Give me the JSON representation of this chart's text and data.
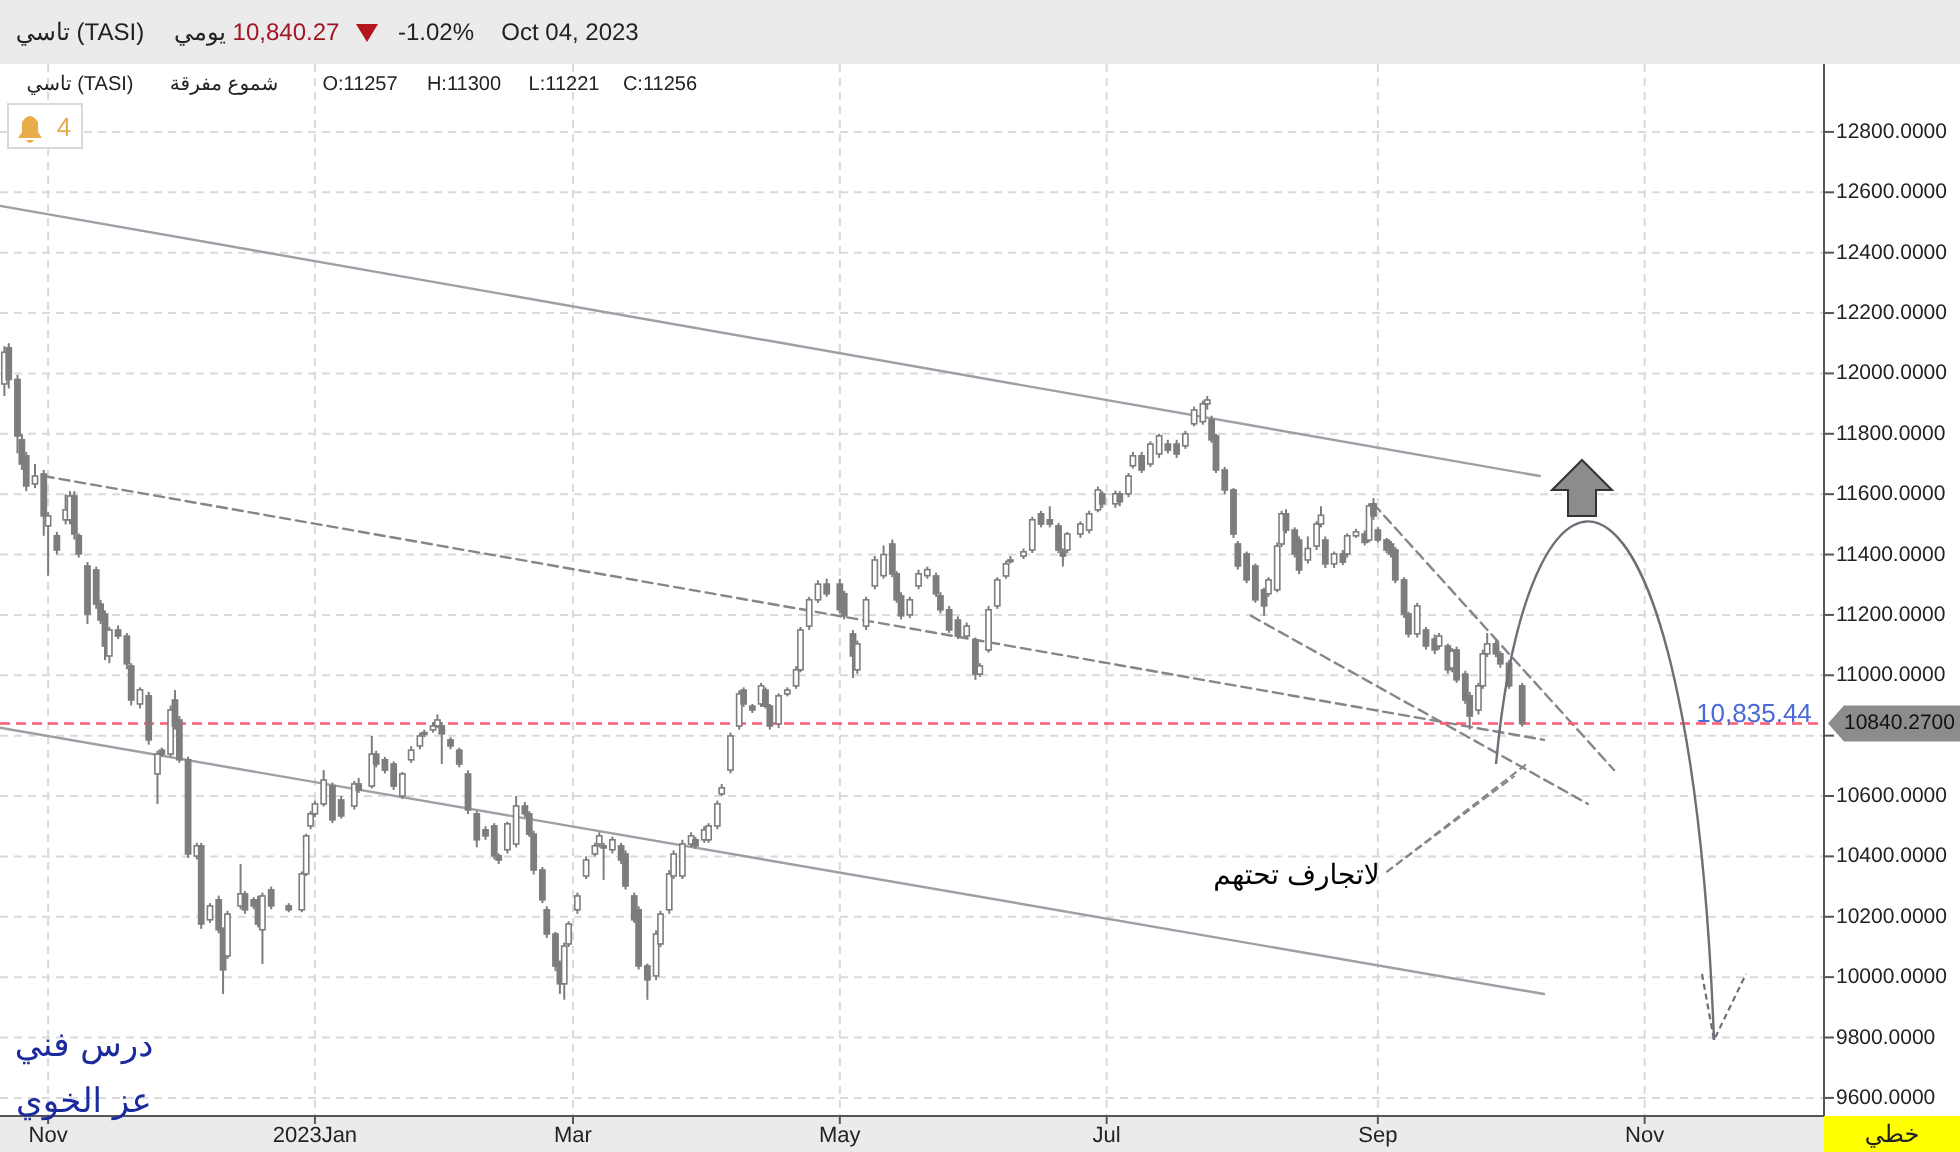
{
  "chart_data": {
    "type": "candlestick",
    "title": "تاسي (TASI)",
    "xlim": [
      "2022-10-21",
      "2023-12-12"
    ],
    "ylim": [
      9540,
      13025
    ],
    "xticks": [
      {
        "value": "2022-11-01",
        "label": "Nov"
      },
      {
        "value": "2023-01-01",
        "label": "2023Jan"
      },
      {
        "value": "2023-03-01",
        "label": "Mar"
      },
      {
        "value": "2023-05-01",
        "label": "May"
      },
      {
        "value": "2023-07-01",
        "label": "Jul"
      },
      {
        "value": "2023-09-01",
        "label": "Sep"
      },
      {
        "value": "2023-11-01",
        "label": "Nov"
      }
    ],
    "yticks": [
      {
        "value": 9600,
        "label": "9600.0000"
      },
      {
        "value": 9800,
        "label": "9800.0000"
      },
      {
        "value": 10000,
        "label": "10000.0000"
      },
      {
        "value": 10200,
        "label": "10200.0000"
      },
      {
        "value": 10400,
        "label": "10400.0000"
      },
      {
        "value": 10600,
        "label": "10600.0000"
      },
      {
        "value": 10800,
        "label": null
      },
      {
        "value": 11000,
        "label": "11000.0000"
      },
      {
        "value": 11200,
        "label": "11200.0000"
      },
      {
        "value": 11400,
        "label": "11400.0000"
      },
      {
        "value": 11600,
        "label": "11600.0000"
      },
      {
        "value": 11800,
        "label": "11800.0000"
      },
      {
        "value": 12000,
        "label": "12000.0000"
      },
      {
        "value": 12200,
        "label": "12200.0000"
      },
      {
        "value": 12400,
        "label": "12400.0000"
      },
      {
        "value": 12600,
        "label": "12600.0000"
      },
      {
        "value": 12800,
        "label": "12800.0000"
      }
    ],
    "grid": true,
    "x": [
      "2022-10-22",
      "2022-10-23",
      "2022-10-25",
      "2022-10-26",
      "2022-10-27",
      "2022-10-29",
      "2022-10-31",
      "2022-11-01",
      "2022-11-03",
      "2022-11-05",
      "2022-11-06",
      "2022-11-07",
      "2022-11-08",
      "2022-11-10",
      "2022-11-12",
      "2022-11-13",
      "2022-11-14",
      "2022-11-15",
      "2022-11-17",
      "2022-11-19",
      "2022-11-20",
      "2022-11-22",
      "2022-11-24",
      "2022-11-26",
      "2022-11-27",
      "2022-11-29",
      "2022-11-30",
      "2022-12-01",
      "2022-12-03",
      "2022-12-05",
      "2022-12-06",
      "2022-12-08",
      "2022-12-10",
      "2022-12-11",
      "2022-12-12",
      "2022-12-15",
      "2022-12-16",
      "2022-12-18",
      "2022-12-19",
      "2022-12-20",
      "2022-12-22",
      "2022-12-26",
      "2022-12-29",
      "2022-12-30",
      "2022-12-31",
      "2023-01-01",
      "2023-01-03",
      "2023-01-05",
      "2023-01-07",
      "2023-01-10",
      "2023-01-11",
      "2023-01-14",
      "2023-01-15",
      "2023-01-17",
      "2023-01-19",
      "2023-01-21",
      "2023-01-23",
      "2023-01-25",
      "2023-01-26",
      "2023-01-28",
      "2023-01-29",
      "2023-01-30",
      "2023-02-01",
      "2023-02-03",
      "2023-02-05",
      "2023-02-07",
      "2023-02-09",
      "2023-02-11",
      "2023-02-12",
      "2023-02-14",
      "2023-02-16",
      "2023-02-18",
      "2023-02-19",
      "2023-02-20",
      "2023-02-22",
      "2023-02-23",
      "2023-02-25",
      "2023-02-26",
      "2023-02-27",
      "2023-02-28",
      "2023-03-02",
      "2023-03-04",
      "2023-03-06",
      "2023-03-07",
      "2023-03-08",
      "2023-03-10",
      "2023-03-12",
      "2023-03-13",
      "2023-03-15",
      "2023-03-16",
      "2023-03-18",
      "2023-03-20",
      "2023-03-21",
      "2023-03-23",
      "2023-03-24",
      "2023-03-26",
      "2023-03-28",
      "2023-03-29",
      "2023-03-31",
      "2023-04-01",
      "2023-04-03",
      "2023-04-04",
      "2023-04-06",
      "2023-04-08",
      "2023-04-09",
      "2023-04-11",
      "2023-04-13",
      "2023-04-14",
      "2023-04-15",
      "2023-04-17",
      "2023-04-19",
      "2023-04-21",
      "2023-04-22",
      "2023-04-24",
      "2023-04-26",
      "2023-04-28",
      "2023-05-01",
      "2023-05-02",
      "2023-05-04",
      "2023-05-05",
      "2023-05-07",
      "2023-05-09",
      "2023-05-11",
      "2023-05-13",
      "2023-05-14",
      "2023-05-15",
      "2023-05-17",
      "2023-05-19",
      "2023-05-21",
      "2023-05-23",
      "2023-05-24",
      "2023-05-26",
      "2023-05-28",
      "2023-05-30",
      "2023-06-01",
      "2023-06-02",
      "2023-06-04",
      "2023-06-06",
      "2023-06-08",
      "2023-06-09",
      "2023-06-12",
      "2023-06-14",
      "2023-06-16",
      "2023-06-18",
      "2023-06-20",
      "2023-06-21",
      "2023-06-22",
      "2023-06-25",
      "2023-06-27",
      "2023-06-29",
      "2023-06-30",
      "2023-07-03",
      "2023-07-04",
      "2023-07-06",
      "2023-07-07",
      "2023-07-09",
      "2023-07-11",
      "2023-07-13",
      "2023-07-15",
      "2023-07-17",
      "2023-07-19",
      "2023-07-21",
      "2023-07-23",
      "2023-07-24",
      "2023-07-25",
      "2023-07-26",
      "2023-07-28",
      "2023-07-30",
      "2023-07-31",
      "2023-08-02",
      "2023-08-04",
      "2023-08-06",
      "2023-08-07",
      "2023-08-09",
      "2023-08-10",
      "2023-08-11",
      "2023-08-13",
      "2023-08-14",
      "2023-08-16",
      "2023-08-18",
      "2023-08-19",
      "2023-08-20",
      "2023-08-22",
      "2023-08-24",
      "2023-08-25",
      "2023-08-27",
      "2023-08-29",
      "2023-08-30",
      "2023-08-31",
      "2023-09-01",
      "2023-09-03",
      "2023-09-04",
      "2023-09-05",
      "2023-09-07",
      "2023-09-08",
      "2023-09-10",
      "2023-09-12",
      "2023-09-14",
      "2023-09-15",
      "2023-09-17",
      "2023-09-18",
      "2023-09-19",
      "2023-09-21",
      "2023-09-22",
      "2023-09-24",
      "2023-09-25",
      "2023-09-26",
      "2023-09-28",
      "2023-09-29",
      "2023-10-01",
      "2023-10-04"
    ],
    "ohlc": [
      [
        11965,
        12090,
        11925,
        12070
      ],
      [
        12085,
        12100,
        11950,
        11980
      ],
      [
        11980,
        11995,
        11735,
        11793
      ],
      [
        11780,
        11800,
        11680,
        11700
      ],
      [
        11727,
        11740,
        11610,
        11627
      ],
      [
        11634,
        11700,
        11620,
        11660
      ],
      [
        11667,
        11680,
        11462,
        11528
      ],
      [
        11495,
        11540,
        11330,
        11528
      ],
      [
        11462,
        11475,
        11400,
        11415
      ],
      [
        11515,
        11600,
        11500,
        11548
      ],
      [
        11515,
        11610,
        11500,
        11594
      ],
      [
        11594,
        11610,
        11450,
        11468
      ],
      [
        11462,
        11470,
        11390,
        11402
      ],
      [
        11362,
        11375,
        11170,
        11203
      ],
      [
        11349,
        11360,
        11220,
        11236
      ],
      [
        11236,
        11250,
        11170,
        11183
      ],
      [
        11203,
        11215,
        11050,
        11097
      ],
      [
        11064,
        11160,
        11040,
        11150
      ],
      [
        11150,
        11165,
        11120,
        11130
      ],
      [
        11130,
        11140,
        11020,
        11038
      ],
      [
        11031,
        11040,
        10900,
        10918
      ],
      [
        10905,
        10960,
        10890,
        10952
      ],
      [
        10932,
        10945,
        10770,
        10786
      ],
      [
        10673,
        10750,
        10574,
        10739
      ],
      [
        10752,
        10760,
        10730,
        10739
      ],
      [
        10739,
        10900,
        10730,
        10885
      ],
      [
        10918,
        10951,
        10820,
        10832
      ],
      [
        10852,
        10865,
        10710,
        10720
      ],
      [
        10720,
        10730,
        10395,
        10408
      ],
      [
        10401,
        10445,
        10390,
        10435
      ],
      [
        10435,
        10445,
        10160,
        10176
      ],
      [
        10190,
        10245,
        10180,
        10236
      ],
      [
        10256,
        10270,
        10145,
        10157
      ],
      [
        10157,
        10165,
        9944,
        10024
      ],
      [
        10070,
        10220,
        10060,
        10209
      ],
      [
        10236,
        10375,
        10225,
        10276
      ],
      [
        10276,
        10285,
        10210,
        10223
      ],
      [
        10256,
        10265,
        10225,
        10236
      ],
      [
        10256,
        10270,
        10165,
        10176
      ],
      [
        10157,
        10280,
        10044,
        10269
      ],
      [
        10289,
        10300,
        10225,
        10236
      ],
      [
        10236,
        10245,
        10215,
        10223
      ],
      [
        10223,
        10350,
        10215,
        10342
      ],
      [
        10342,
        10475,
        10335,
        10468
      ],
      [
        10501,
        10550,
        10490,
        10541
      ],
      [
        10541,
        10585,
        10530,
        10574
      ],
      [
        10574,
        10686,
        10565,
        10653
      ],
      [
        10633,
        10645,
        10510,
        10521
      ],
      [
        10587,
        10600,
        10525,
        10534
      ],
      [
        10567,
        10650,
        10555,
        10640
      ],
      [
        10640,
        10660,
        10610,
        10620
      ],
      [
        10633,
        10799,
        10625,
        10739
      ],
      [
        10739,
        10750,
        10695,
        10706
      ],
      [
        10720,
        10730,
        10675,
        10686
      ],
      [
        10706,
        10715,
        10620,
        10633
      ],
      [
        10600,
        10680,
        10590,
        10673
      ],
      [
        10720,
        10765,
        10710,
        10752
      ],
      [
        10766,
        10810,
        10755,
        10799
      ],
      [
        10805,
        10820,
        10795,
        10810
      ],
      [
        10819,
        10845,
        10810,
        10832
      ],
      [
        10832,
        10870,
        10825,
        10852
      ],
      [
        10832,
        10845,
        10706,
        10806
      ],
      [
        10786,
        10795,
        10755,
        10766
      ],
      [
        10752,
        10760,
        10695,
        10706
      ],
      [
        10673,
        10685,
        10540,
        10554
      ],
      [
        10541,
        10550,
        10430,
        10455
      ],
      [
        10488,
        10500,
        10455,
        10468
      ],
      [
        10501,
        10510,
        10390,
        10402
      ],
      [
        10402,
        10410,
        10375,
        10388
      ],
      [
        10422,
        10515,
        10410,
        10508
      ],
      [
        10441,
        10600,
        10430,
        10567
      ],
      [
        10567,
        10580,
        10530,
        10541
      ],
      [
        10541,
        10550,
        10465,
        10474
      ],
      [
        10474,
        10485,
        10340,
        10355
      ],
      [
        10355,
        10365,
        10245,
        10256
      ],
      [
        10223,
        10235,
        10130,
        10143
      ],
      [
        10143,
        10150,
        10020,
        10037
      ],
      [
        10044,
        10055,
        9944,
        9978
      ],
      [
        9978,
        10115,
        9925,
        10103
      ],
      [
        10110,
        10185,
        10100,
        10176
      ],
      [
        10223,
        10280,
        10210,
        10269
      ],
      [
        10335,
        10400,
        10325,
        10388
      ],
      [
        10408,
        10445,
        10400,
        10435
      ],
      [
        10441,
        10480,
        10430,
        10468
      ],
      [
        10435,
        10445,
        10322,
        10428
      ],
      [
        10422,
        10465,
        10410,
        10455
      ],
      [
        10435,
        10445,
        10375,
        10388
      ],
      [
        10408,
        10420,
        10290,
        10302
      ],
      [
        10269,
        10280,
        10180,
        10190
      ],
      [
        10223,
        10235,
        10025,
        10037
      ],
      [
        10037,
        10045,
        9925,
        9991
      ],
      [
        10004,
        10155,
        9990,
        10143
      ],
      [
        10110,
        10220,
        10100,
        10209
      ],
      [
        10223,
        10355,
        10210,
        10342
      ],
      [
        10335,
        10420,
        10325,
        10408
      ],
      [
        10335,
        10455,
        10325,
        10441
      ],
      [
        10441,
        10480,
        10430,
        10468
      ],
      [
        10455,
        10465,
        10425,
        10435
      ],
      [
        10455,
        10500,
        10445,
        10488
      ],
      [
        10455,
        10510,
        10445,
        10501
      ],
      [
        10501,
        10585,
        10490,
        10574
      ],
      [
        10607,
        10640,
        10600,
        10627
      ],
      [
        10686,
        10810,
        10675,
        10799
      ],
      [
        10832,
        10950,
        10820,
        10938
      ],
      [
        10951,
        10960,
        10895,
        10905
      ],
      [
        10898,
        10905,
        10875,
        10885
      ],
      [
        10905,
        10975,
        10895,
        10965
      ],
      [
        10951,
        10960,
        10890,
        10898
      ],
      [
        10898,
        10905,
        10820,
        10832
      ],
      [
        10839,
        10940,
        10825,
        10932
      ],
      [
        10938,
        10960,
        10930,
        10951
      ],
      [
        10965,
        11030,
        10955,
        11018
      ],
      [
        11018,
        11160,
        11010,
        11150
      ],
      [
        11163,
        11260,
        11150,
        11250
      ],
      [
        11250,
        11315,
        11240,
        11302
      ],
      [
        11302,
        11320,
        11260,
        11270
      ],
      [
        11302,
        11320,
        11205,
        11217
      ],
      [
        11270,
        11280,
        11185,
        11197
      ],
      [
        11137,
        11150,
        10991,
        11064
      ],
      [
        11018,
        11115,
        11005,
        11104
      ],
      [
        11163,
        11260,
        11150,
        11250
      ],
      [
        11296,
        11395,
        11285,
        11382
      ],
      [
        11330,
        11430,
        11320,
        11400
      ],
      [
        11435,
        11450,
        11325,
        11336
      ],
      [
        11336,
        11345,
        11240,
        11250
      ],
      [
        11263,
        11275,
        11185,
        11197
      ],
      [
        11200,
        11260,
        11190,
        11250
      ],
      [
        11296,
        11350,
        11285,
        11336
      ],
      [
        11330,
        11360,
        11320,
        11350
      ],
      [
        11329,
        11340,
        11260,
        11270
      ],
      [
        11263,
        11275,
        11205,
        11217
      ],
      [
        11217,
        11230,
        11140,
        11150
      ],
      [
        11183,
        11195,
        11120,
        11130
      ],
      [
        11130,
        11175,
        11120,
        11163
      ],
      [
        11117,
        11125,
        10985,
        11004
      ],
      [
        11004,
        11040,
        10995,
        11031
      ],
      [
        11084,
        11230,
        11075,
        11217
      ],
      [
        11230,
        11325,
        11220,
        11316
      ],
      [
        11329,
        11380,
        11320,
        11369
      ],
      [
        11382,
        11395,
        11370,
        11380
      ],
      [
        11395,
        11420,
        11385,
        11409
      ],
      [
        11415,
        11525,
        11405,
        11515
      ],
      [
        11535,
        11545,
        11490,
        11501
      ],
      [
        11515,
        11560,
        11490,
        11501
      ],
      [
        11495,
        11505,
        11405,
        11415
      ],
      [
        11409,
        11420,
        11360,
        11395
      ],
      [
        11415,
        11475,
        11405,
        11468
      ],
      [
        11468,
        11510,
        11455,
        11501
      ],
      [
        11481,
        11545,
        11470,
        11535
      ],
      [
        11548,
        11625,
        11540,
        11614
      ],
      [
        11601,
        11610,
        11555,
        11568
      ],
      [
        11568,
        11612,
        11555,
        11601
      ],
      [
        11601,
        11610,
        11560,
        11575
      ],
      [
        11601,
        11670,
        11590,
        11660
      ],
      [
        11694,
        11740,
        11685,
        11727
      ],
      [
        11727,
        11740,
        11670,
        11680
      ],
      [
        11700,
        11775,
        11690,
        11766
      ],
      [
        11733,
        11800,
        11720,
        11793
      ],
      [
        11766,
        11780,
        11735,
        11746
      ],
      [
        11766,
        11780,
        11720,
        11733
      ],
      [
        11760,
        11810,
        11750,
        11800
      ],
      [
        11833,
        11890,
        11825,
        11879
      ],
      [
        11840,
        11910,
        11830,
        11899
      ],
      [
        11899,
        11925,
        11880,
        11912
      ],
      [
        11846,
        11860,
        11770,
        11780
      ],
      [
        11793,
        11800,
        11670,
        11680
      ],
      [
        11680,
        11690,
        11600,
        11614
      ],
      [
        11614,
        11620,
        11455,
        11468
      ],
      [
        11435,
        11445,
        11350,
        11362
      ],
      [
        11402,
        11410,
        11305,
        11316
      ],
      [
        11362,
        11370,
        11240,
        11250
      ],
      [
        11283,
        11290,
        11197,
        11230
      ],
      [
        11270,
        11325,
        11260,
        11316
      ],
      [
        11283,
        11440,
        11275,
        11428
      ],
      [
        11435,
        11545,
        11425,
        11535
      ],
      [
        11535,
        11550,
        11470,
        11481
      ],
      [
        11481,
        11490,
        11390,
        11402
      ],
      [
        11448,
        11460,
        11335,
        11349
      ],
      [
        11382,
        11460,
        11370,
        11420
      ],
      [
        11428,
        11510,
        11415,
        11501
      ],
      [
        11501,
        11560,
        11490,
        11530
      ],
      [
        11448,
        11460,
        11355,
        11369
      ],
      [
        11369,
        11410,
        11355,
        11402
      ],
      [
        11402,
        11415,
        11365,
        11375
      ],
      [
        11402,
        11470,
        11390,
        11462
      ],
      [
        11462,
        11485,
        11455,
        11475
      ],
      [
        11468,
        11480,
        11430,
        11440
      ],
      [
        11448,
        11570,
        11440,
        11561
      ],
      [
        11568,
        11587,
        11515,
        11528
      ],
      [
        11481,
        11490,
        11440,
        11448
      ],
      [
        11448,
        11455,
        11405,
        11415
      ],
      [
        11435,
        11445,
        11390,
        11402
      ],
      [
        11415,
        11425,
        11305,
        11316
      ],
      [
        11316,
        11325,
        11190,
        11203
      ],
      [
        11203,
        11210,
        11125,
        11137
      ],
      [
        11137,
        11240,
        11125,
        11230
      ],
      [
        11150,
        11160,
        11085,
        11097
      ],
      [
        11120,
        11135,
        11070,
        11084
      ],
      [
        11097,
        11140,
        11085,
        11130
      ],
      [
        11097,
        11105,
        11005,
        11018
      ],
      [
        11024,
        11090,
        11010,
        11080
      ],
      [
        11084,
        11095,
        10975,
        10985
      ],
      [
        11004,
        11015,
        10905,
        10918
      ],
      [
        10932,
        10945,
        10820,
        10865
      ],
      [
        10885,
        10975,
        10870,
        10965
      ],
      [
        10965,
        11085,
        10955,
        11071
      ],
      [
        11071,
        11140,
        11060,
        11104
      ],
      [
        11104,
        11115,
        11060,
        11071
      ],
      [
        11071,
        11080,
        11025,
        11038
      ],
      [
        11040,
        11050,
        10955,
        10965
      ],
      [
        10965,
        10975,
        10830,
        10840
      ]
    ],
    "series": [
      {
        "type": "line",
        "color": "#9e9ea6",
        "line_style": "solid",
        "x": [
          "2022-10-21",
          "2023-10-08"
        ],
        "values": [
          12555,
          11660
        ]
      },
      {
        "type": "line",
        "color": "#9e9ea6",
        "line_style": "solid",
        "x": [
          "2022-10-21",
          "2023-10-09"
        ],
        "values": [
          10826,
          9944
        ]
      },
      {
        "type": "line",
        "color": "#85858d",
        "line_style": "dashed",
        "x": [
          "2022-10-31",
          "2023-10-09"
        ],
        "values": [
          11660,
          10786
        ]
      },
      {
        "type": "line",
        "color": "#85858d",
        "line_style": "dashed",
        "x": [
          "2023-08-03",
          "2023-10-19"
        ],
        "values": [
          11197,
          10574
        ]
      },
      {
        "type": "line",
        "color": "#85858d",
        "line_style": "dashed",
        "x": [
          "2023-08-31",
          "2023-10-25"
        ],
        "values": [
          11568,
          10686
        ]
      }
    ],
    "ref_lines": [
      {
        "axis": "y",
        "value": 10840.27,
        "label": "10840.2700",
        "color": "#ff5a72",
        "line_style": "dashed"
      }
    ],
    "annotations": [
      "يومي",
      "10,840.27",
      "-1.02%",
      "Oct 04, 2023",
      "تاسي (TASI)",
      "شموع مفرقة",
      "O:11257",
      "H:11300",
      "L:11221",
      "C:11256",
      "4",
      "درس فني",
      "عز الخوي",
      "خطي",
      "10,835.44",
      {
        "text": "لاتجارف تحتهم",
        "x": "2023-10-05",
        "y": 10706
      }
    ]
  }
}
